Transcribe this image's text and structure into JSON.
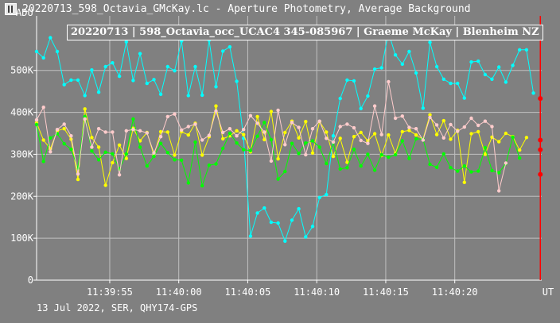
{
  "window": {
    "title": "20220713_598_Octavia_GMcKay.lc - Aperture Photometry, Average Background"
  },
  "footer": {
    "text": "13 Jul 2022, SER, QHY174-GPS"
  },
  "colors": {
    "background": "#808080",
    "grid": "#c0c0c0",
    "cyan": "#00ffff",
    "yellow": "#ffff00",
    "green": "#00ff00",
    "pink": "#ffcccc",
    "cursor": "#ff0000",
    "marker": "#ff0000"
  },
  "chart_data": {
    "type": "line",
    "title": "20220713 | 598_Octavia_occ_UCAC4 345-085967 | Graeme McKay | Blenheim NZ",
    "xlabel": "UT",
    "ylabel": "ADU",
    "x_tick_labels": [
      "11:39:55",
      "11:40:00",
      "11:40:05",
      "11:40:10",
      "11:40:15",
      "11:40:20"
    ],
    "x_tick_values": [
      -10,
      -5,
      0,
      5,
      10,
      15
    ],
    "xlim": [
      -15.3,
      21.3
    ],
    "y_tick_labels": [
      "0",
      "100K",
      "200K",
      "300K",
      "400K",
      "500K"
    ],
    "y_tick_values": [
      0,
      100000,
      200000,
      300000,
      400000,
      500000
    ],
    "ylim": [
      0,
      630000
    ],
    "grid": true,
    "cursor_x": 21.2,
    "series": [
      {
        "color": "#00ffff",
        "values": [
          545000,
          530000,
          578000,
          545000,
          466000,
          477000,
          477000,
          440000,
          501000,
          448000,
          509000,
          518000,
          486000,
          568000,
          476000,
          540000,
          469000,
          478000,
          443000,
          509000,
          499000,
          570000,
          440000,
          509000,
          441000,
          572000,
          461000,
          546000,
          556000,
          474000,
          338000,
          105000,
          160000,
          172000,
          138000,
          136000,
          93000,
          143000,
          170000,
          103000,
          128000,
          197000,
          204000,
          344000,
          433000,
          477000,
          475000,
          409000,
          439000,
          503000,
          506000,
          590000,
          537000,
          515000,
          545000,
          494000,
          410000,
          567000,
          509000,
          479000,
          469000,
          469000,
          434000,
          520000,
          522000,
          490000,
          479000,
          508000,
          472000,
          512000,
          549000,
          549000,
          446000
        ]
      },
      {
        "color": "#ffff00",
        "values": [
          375000,
          334000,
          313000,
          356000,
          361000,
          336000,
          240000,
          408000,
          340000,
          317000,
          226000,
          280000,
          322000,
          290000,
          362000,
          332000,
          352000,
          298000,
          354000,
          353000,
          298000,
          354000,
          346000,
          374000,
          298000,
          342000,
          415000,
          337000,
          344000,
          356000,
          347000,
          306000,
          390000,
          335000,
          402000,
          289000,
          352000,
          379000,
          339000,
          378000,
          303000,
          378000,
          353000,
          295000,
          338000,
          281000,
          342000,
          352000,
          332000,
          349000,
          297000,
          346000,
          302000,
          354000,
          357000,
          346000,
          336000,
          394000,
          347000,
          380000,
          336000,
          357000,
          233000,
          349000,
          354000,
          300000,
          341000,
          330000,
          350000,
          342000,
          310000,
          340000
        ]
      },
      {
        "color": "#00ff00",
        "values": [
          371000,
          283000,
          339000,
          349000,
          325000,
          312000,
          267000,
          390000,
          308000,
          287000,
          305000,
          301000,
          265000,
          301000,
          384000,
          317000,
          272000,
          295000,
          326000,
          304000,
          287000,
          286000,
          232000,
          329000,
          225000,
          274000,
          277000,
          314000,
          350000,
          327000,
          311000,
          309000,
          343000,
          376000,
          335000,
          241000,
          259000,
          326000,
          302000,
          327000,
          332000,
          317000,
          278000,
          328000,
          265000,
          268000,
          312000,
          272000,
          300000,
          262000,
          299000,
          293000,
          299000,
          332000,
          290000,
          337000,
          336000,
          276000,
          269000,
          301000,
          268000,
          260000,
          272000,
          258000,
          260000,
          316000,
          261000,
          256000,
          278000,
          341000,
          291000
        ]
      },
      {
        "color": "#ffcccc",
        "values": [
          382000,
          412000,
          306000,
          359000,
          372000,
          344000,
          253000,
          384000,
          317000,
          361000,
          353000,
          353000,
          251000,
          356000,
          359000,
          356000,
          351000,
          303000,
          342000,
          390000,
          396000,
          358000,
          366000,
          372000,
          334000,
          345000,
          403000,
          352000,
          361000,
          344000,
          359000,
          392000,
          374000,
          353000,
          284000,
          405000,
          323000,
          376000,
          364000,
          299000,
          361000,
          379000,
          338000,
          329000,
          366000,
          372000,
          363000,
          333000,
          326000,
          415000,
          347000,
          473000,
          386000,
          391000,
          364000,
          361000,
          334000,
          388000,
          370000,
          339000,
          371000,
          355000,
          365000,
          386000,
          369000,
          379000,
          366000,
          213000,
          279000
        ]
      }
    ],
    "end_markers": [
      433000,
      334000,
      311000,
      252000
    ]
  }
}
